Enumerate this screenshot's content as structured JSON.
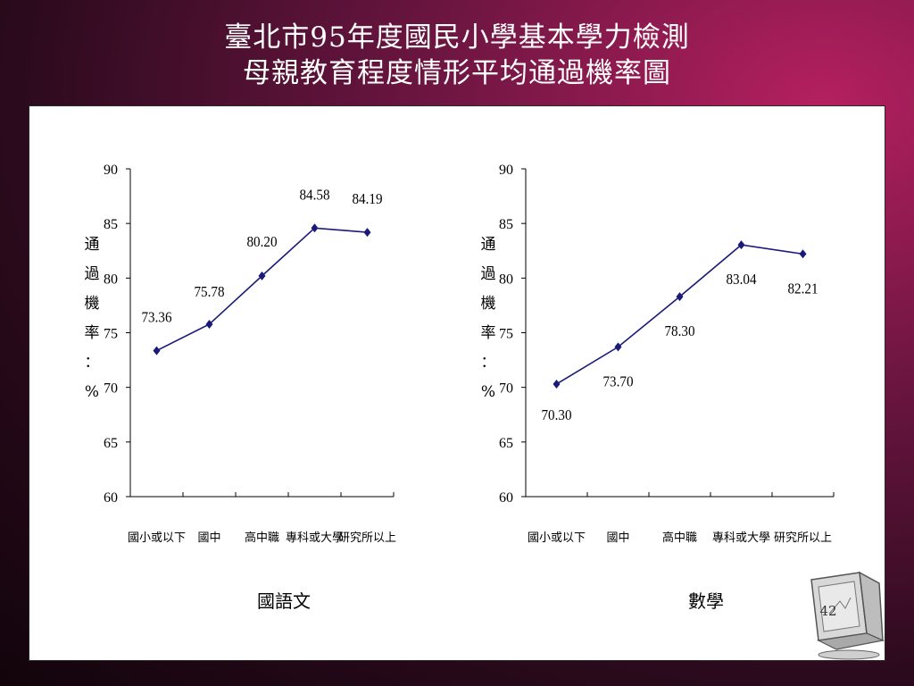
{
  "slide": {
    "title_line1": "臺北市95年度國民小學基本學力檢測",
    "title_line2": "母親教育程度情形平均通過機率圖",
    "page_number": "42",
    "icons": [
      "computer-monitor-icon"
    ]
  },
  "chart_data": [
    {
      "type": "line",
      "caption": "國語文",
      "categories": [
        "國小或以下",
        "國中",
        "高中職",
        "專科或大學",
        "研究所以上"
      ],
      "values": [
        73.36,
        75.78,
        80.2,
        84.58,
        84.19
      ],
      "value_labels": [
        "73.36",
        "75.78",
        "80.20",
        "84.58",
        "84.19"
      ],
      "ylabel": "通過機率：%",
      "ylim": [
        60,
        90
      ],
      "yticks": [
        60,
        65,
        70,
        75,
        80,
        85,
        90
      ],
      "line_color": "#1a1a7a",
      "grid": false,
      "legend": "none"
    },
    {
      "type": "line",
      "caption": "數學",
      "categories": [
        "國小或以下",
        "國中",
        "高中職",
        "專科或大學",
        "研究所以上"
      ],
      "values": [
        70.3,
        73.7,
        78.3,
        83.04,
        82.21
      ],
      "value_labels": [
        "70.30",
        "73.70",
        "78.30",
        "83.04",
        "82.21"
      ],
      "ylabel": "通過機率：%",
      "ylim": [
        60,
        90
      ],
      "yticks": [
        60,
        65,
        70,
        75,
        80,
        85,
        90
      ],
      "line_color": "#1a1a7a",
      "grid": false,
      "legend": "none"
    }
  ]
}
